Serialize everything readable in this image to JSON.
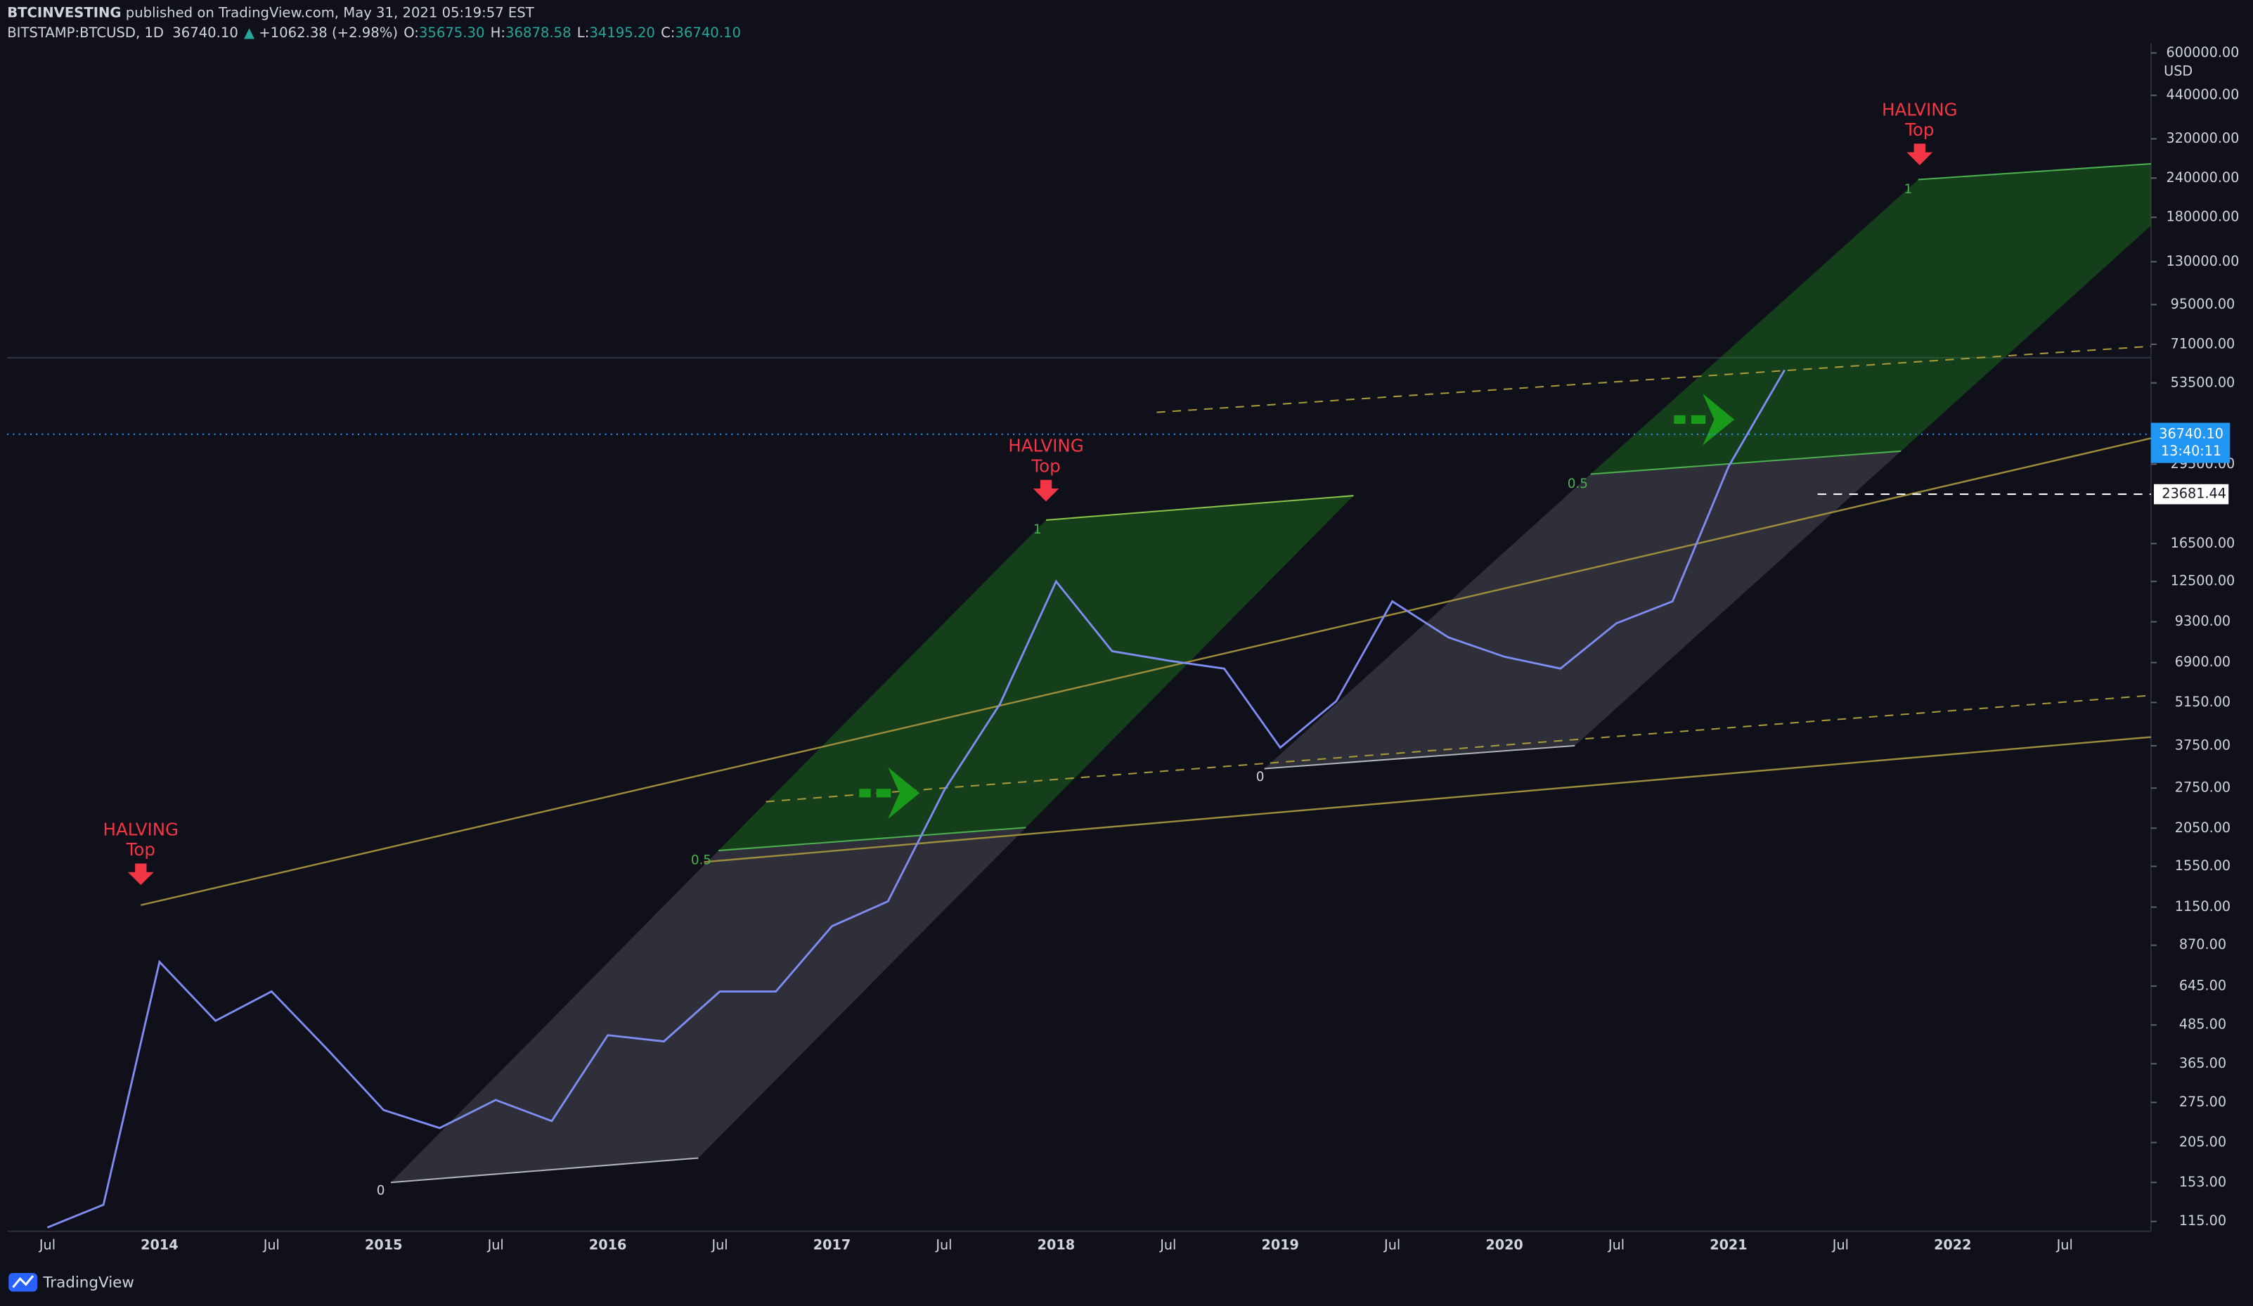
{
  "header": {
    "author": "BTCINVESTING",
    "published": " published on TradingView.com, May 31, 2021 05:19:57 EST",
    "symbol": "BITSTAMP:BTCUSD, 1D",
    "last": "36740.10",
    "change_arrow": "▲",
    "change": "+1062.38 (+2.98%)",
    "ohlc": [
      [
        "O:",
        "35675.30"
      ],
      [
        "H:",
        "36878.58"
      ],
      [
        "L:",
        "34195.20"
      ],
      [
        "C:",
        "36740.10"
      ]
    ]
  },
  "footer": {
    "brand": "TradingView"
  },
  "chart_data": {
    "type": "line",
    "log_scale": true,
    "currency": "USD",
    "categories": [
      "Jul",
      null,
      "2014",
      null,
      "Jul",
      null,
      "2015",
      null,
      "Jul",
      null,
      "2016",
      null,
      "Jul",
      null,
      "2017",
      null,
      "Jul",
      null,
      "2018",
      null,
      "Jul",
      null,
      "2019",
      null,
      "Jul",
      null,
      "2020",
      null,
      "Jul",
      null,
      "2021",
      null,
      "Jul",
      null,
      "2022",
      null,
      "Jul"
    ],
    "series": [
      {
        "name": "BTCUSD",
        "color": "#7f8cf2",
        "values": [
          110,
          130,
          770,
          500,
          620,
          405,
          260,
          228,
          280,
          240,
          450,
          430,
          620,
          620,
          1000,
          1200,
          2700,
          5100,
          12500,
          7500,
          7000,
          6600,
          3700,
          5200,
          10800,
          8300,
          7200,
          6600,
          9200,
          10800,
          29000,
          58800,
          null,
          null,
          null,
          null,
          null
        ]
      }
    ],
    "ylim": [
      107,
      645000
    ],
    "yticks": [
      {
        "value": 600000,
        "label": "600000.00"
      },
      {
        "value": 440000,
        "label": "440000.00"
      },
      {
        "value": 320000,
        "label": "320000.00"
      },
      {
        "value": 240000,
        "label": "240000.00"
      },
      {
        "value": 180000,
        "label": "180000.00"
      },
      {
        "value": 130000,
        "label": "130000.00"
      },
      {
        "value": 95000,
        "label": "95000.00"
      },
      {
        "value": 71000,
        "label": "71000.00"
      },
      {
        "value": 53500,
        "label": "53500.00"
      },
      {
        "value": 29500,
        "label": "29500.00"
      },
      {
        "value": 16500,
        "label": "16500.00"
      },
      {
        "value": 12500,
        "label": "12500.00"
      },
      {
        "value": 9300,
        "label": "9300.00"
      },
      {
        "value": 6900,
        "label": "6900.00"
      },
      {
        "value": 5150,
        "label": "5150.00"
      },
      {
        "value": 3750,
        "label": "3750.00"
      },
      {
        "value": 2750,
        "label": "2750.00"
      },
      {
        "value": 2050,
        "label": "2050.00"
      },
      {
        "value": 1550,
        "label": "1550.00"
      },
      {
        "value": 1150,
        "label": "1150.00"
      },
      {
        "value": 870,
        "label": "870.00"
      },
      {
        "value": 645,
        "label": "645.00"
      },
      {
        "value": 485,
        "label": "485.00"
      },
      {
        "value": 365,
        "label": "365.00"
      },
      {
        "value": 275,
        "label": "275.00"
      },
      {
        "value": 205,
        "label": "205.00"
      },
      {
        "value": 153,
        "label": "153.00"
      },
      {
        "value": 115,
        "label": "115.00"
      }
    ],
    "price_line": {
      "value": 36740.1,
      "label": "36740.10",
      "countdown": "13:40:11",
      "color": "#2196f3"
    },
    "level_line": {
      "value": 23681.44,
      "label": "23681.44"
    },
    "annotations": [
      [
        "HALVING",
        "Top"
      ],
      [
        "HALVING",
        "Top"
      ],
      [
        "HALVING",
        "Top"
      ]
    ],
    "fib_labels": [
      "0",
      "0.5",
      "1",
      "0",
      "0.5",
      "1"
    ]
  }
}
